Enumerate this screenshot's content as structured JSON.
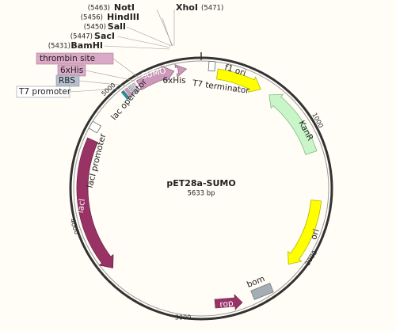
{
  "map": {
    "name": "pET28a-SUMO",
    "length": "5633 bp"
  },
  "sites": [
    {
      "position": "(5463)",
      "name": "NotI"
    },
    {
      "name": "XhoI",
      "position": "(5471)"
    },
    {
      "position": "(5456)",
      "name": "HindIII"
    },
    {
      "position": "(5450)",
      "name": "SalI"
    },
    {
      "position": "(5447)",
      "name": "SacI"
    },
    {
      "position": "(5431)",
      "name": "BamHI"
    }
  ],
  "callouts": [
    "thrombin site",
    "6xHis",
    "RBS",
    "T7 promoter"
  ],
  "features": [
    "lac operator",
    "SUMO",
    "6xHis",
    "T7 terminator",
    "f1 ori",
    "KanR",
    "ori",
    "bom",
    "rop",
    "lacI",
    "lacI promoter"
  ],
  "ruler": [
    "1000",
    "2000",
    "3000",
    "4000",
    "5000"
  ]
}
